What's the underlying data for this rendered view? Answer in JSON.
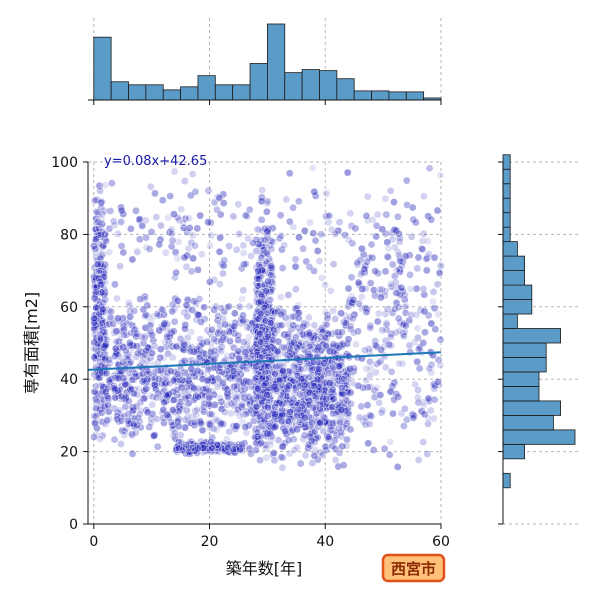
{
  "chart_data": [
    {
      "type": "scatter",
      "xlabel": "築年数[年]",
      "ylabel": "専有面積[m2]",
      "xlim": [
        -1,
        60
      ],
      "ylim": [
        0,
        100
      ],
      "x_ticks": [
        0,
        20,
        40,
        60
      ],
      "y_ticks": [
        0,
        20,
        40,
        60,
        80,
        100
      ],
      "grid": true,
      "point_color": "#2020b8",
      "regression": {
        "label": "y=0.08x+42.65",
        "slope": 0.08,
        "intercept": 42.65,
        "color": "#1f77b4"
      },
      "clusters": [
        {
          "x": [
            0,
            2
          ],
          "y": [
            18,
            98
          ],
          "count": 260
        },
        {
          "x": [
            2,
            29
          ],
          "y": [
            18,
            65
          ],
          "count": 820
        },
        {
          "x": [
            14,
            26
          ],
          "y": [
            19,
            23
          ],
          "count": 150
        },
        {
          "x": [
            28,
            31
          ],
          "y": [
            15,
            85
          ],
          "count": 420
        },
        {
          "x": [
            31,
            44
          ],
          "y": [
            15,
            62
          ],
          "count": 700
        },
        {
          "x": [
            44,
            60
          ],
          "y": [
            12,
            90
          ],
          "count": 260
        },
        {
          "x": [
            2,
            60
          ],
          "y": [
            60,
            100
          ],
          "count": 230
        }
      ]
    },
    {
      "type": "bar",
      "orientation": "vertical",
      "name": "x-marginal-histogram",
      "bin_start": 0,
      "bin_width": 3,
      "counts": [
        62,
        18,
        15,
        15,
        10,
        13,
        24,
        15,
        15,
        36,
        75,
        27,
        30,
        29,
        21,
        9,
        9,
        8,
        8,
        2
      ],
      "bar_color": "#5b9bc8"
    },
    {
      "type": "bar",
      "orientation": "horizontal",
      "name": "y-marginal-histogram",
      "bin_start": 10,
      "bin_width": 4,
      "counts": [
        1,
        0,
        3,
        10,
        7,
        8,
        5,
        5,
        6,
        6,
        8,
        2,
        4,
        4,
        3,
        3,
        2,
        1,
        1,
        1,
        1,
        1,
        1
      ],
      "bar_color": "#5b9bc8"
    }
  ],
  "badge": {
    "text": "西宮市",
    "fill": "#ffc07a",
    "border": "#e0521a"
  }
}
